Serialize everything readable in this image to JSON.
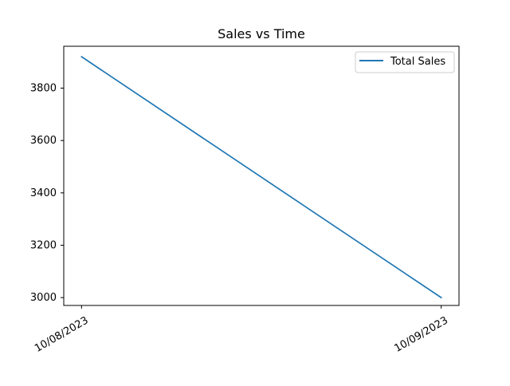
{
  "chart_data": {
    "type": "line",
    "title": "Sales vs Time",
    "xlabel": "",
    "ylabel": "",
    "x": [
      "10/08/2023",
      "10/09/2023"
    ],
    "series": [
      {
        "name": "Total Sales",
        "values": [
          3920,
          3000
        ],
        "color": "#1f77b4"
      }
    ],
    "ylim": [
      2970,
      3960
    ],
    "yticks": [
      3000,
      3200,
      3400,
      3600,
      3800
    ],
    "ytick_labels": [
      "3000",
      "3200",
      "3400",
      "3600",
      "3800"
    ],
    "xtick_labels": [
      "10/08/2023",
      "10/09/2023"
    ],
    "grid": false,
    "legend_position": "upper right"
  }
}
